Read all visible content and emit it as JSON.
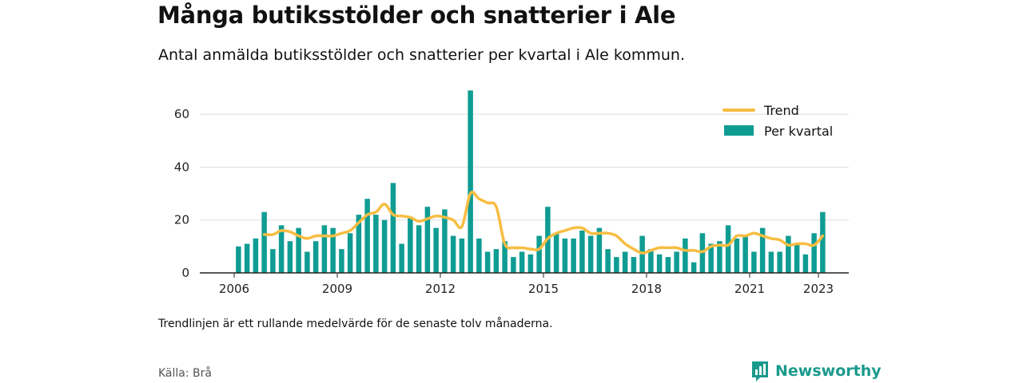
{
  "header": {
    "title": "Många butiksstölder och snatterier i Ale",
    "subtitle": "Antal anmälda butiksstölder och snatterier per kvartal i Ale kommun."
  },
  "footer": {
    "note": "Trendlinjen är ett rullande medelvärde för de senaste tolv månaderna.",
    "source": "Källa: Brå",
    "brand": "Newsworthy"
  },
  "colors": {
    "bar": "#0f9c93",
    "trend": "#f7bd42",
    "grid": "#dddddd",
    "axis": "#222222",
    "brand": "#1a9a8c"
  },
  "chart_data": {
    "type": "bar",
    "x_start": "2006 Q1",
    "x_interval": "quarter",
    "xticks": [
      "2006",
      "2009",
      "2012",
      "2015",
      "2018",
      "2021",
      "2023"
    ],
    "yticks": [
      "0",
      "20",
      "40",
      "60"
    ],
    "ylim": [
      0,
      70
    ],
    "grid": true,
    "legend_position": "top-right",
    "series": [
      {
        "name": "Per kvartal",
        "kind": "bar",
        "values": [
          10,
          11,
          13,
          23,
          9,
          18,
          12,
          17,
          8,
          12,
          18,
          17,
          9,
          15,
          22,
          28,
          22,
          20,
          34,
          11,
          21,
          18,
          25,
          17,
          24,
          14,
          13,
          69,
          13,
          8,
          9,
          12,
          6,
          8,
          7,
          14,
          25,
          15,
          13,
          13,
          16,
          14,
          17,
          9,
          6,
          8,
          6,
          14,
          9,
          7,
          6,
          8,
          13,
          4,
          15,
          11,
          12,
          18,
          13,
          14,
          8,
          17,
          8,
          8,
          14,
          11,
          7,
          15,
          23
        ],
        "color": "#0f9c93"
      },
      {
        "name": "Trend",
        "kind": "line",
        "values": [
          null,
          null,
          null,
          14.5,
          14.5,
          16,
          15.5,
          14,
          13,
          14,
          14,
          14,
          15,
          16,
          19,
          22,
          23,
          26,
          22,
          21.5,
          21,
          19.5,
          20.5,
          21.5,
          21,
          20,
          17.5,
          30,
          28,
          26.5,
          25,
          11,
          9.5,
          9.5,
          9,
          9,
          13,
          15,
          16,
          17,
          17,
          15,
          15,
          15,
          14,
          11,
          9,
          7.5,
          8.5,
          9.5,
          9.5,
          9.5,
          8.5,
          8.5,
          8,
          10,
          10.5,
          10.5,
          14,
          14,
          15,
          14,
          13,
          12.5,
          10.5,
          11,
          11,
          10.5,
          14
        ]
      }
    ]
  }
}
